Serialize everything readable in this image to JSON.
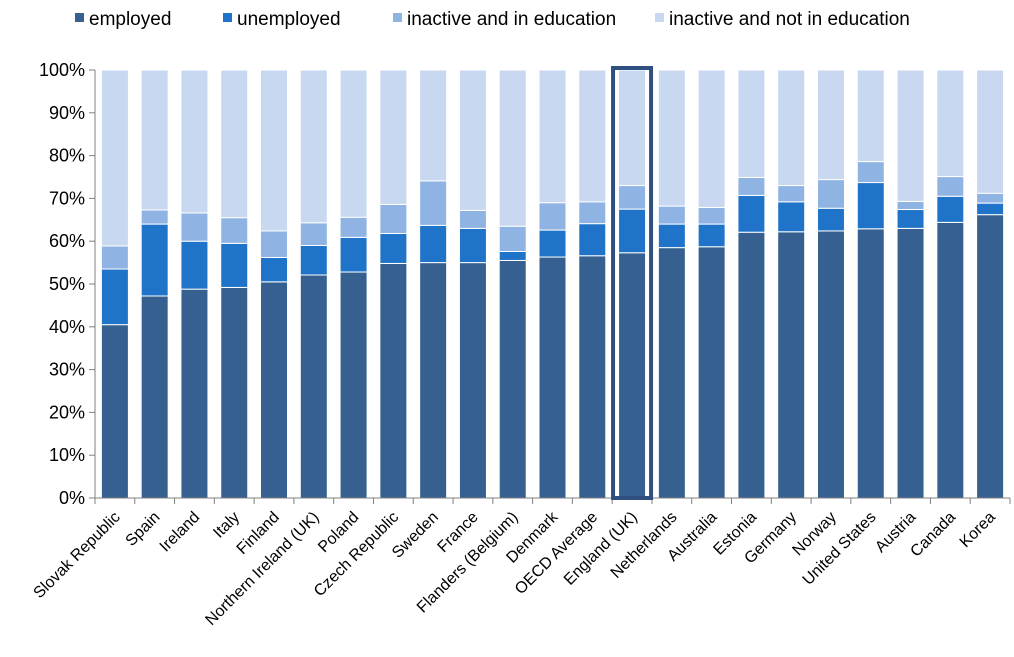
{
  "chart_data": {
    "type": "bar",
    "stacked": true,
    "legend_position": "top",
    "grid": false,
    "ylim": [
      0,
      100
    ],
    "y_ticks": [
      "0%",
      "10%",
      "20%",
      "30%",
      "40%",
      "50%",
      "60%",
      "70%",
      "80%",
      "90%",
      "100%"
    ],
    "categories": [
      "Slovak Republic",
      "Spain",
      "Ireland",
      "Italy",
      "Finland",
      "Northern Ireland (UK)",
      "Poland",
      "Czech Republic",
      "Sweden",
      "France",
      "Flanders (Belgium)",
      "Denmark",
      "OECD Average",
      "England (UK)",
      "Netherlands",
      "Australia",
      "Estonia",
      "Germany",
      "Norway",
      "United States",
      "Austria",
      "Canada",
      "Korea"
    ],
    "highlighted_category": "England (UK)",
    "series": [
      {
        "name": "employed",
        "color": "#35608F",
        "values": [
          40.5,
          47.2,
          48.8,
          49.2,
          50.5,
          52.1,
          52.8,
          54.8,
          55.0,
          55.0,
          55.5,
          56.3,
          56.6,
          57.3,
          58.5,
          58.7,
          62.1,
          62.2,
          62.4,
          62.9,
          63.0,
          64.4,
          66.2
        ]
      },
      {
        "name": "unemployed",
        "color": "#1F73C9",
        "values": [
          13.0,
          16.8,
          11.2,
          10.3,
          5.7,
          6.9,
          8.1,
          7.0,
          8.7,
          8.0,
          2.1,
          6.3,
          7.5,
          10.2,
          5.5,
          5.3,
          8.6,
          7.0,
          5.3,
          10.8,
          4.4,
          6.1,
          2.7
        ]
      },
      {
        "name": "inactive and in education",
        "color": "#8FB3E3",
        "values": [
          5.4,
          3.3,
          6.6,
          6.0,
          6.2,
          5.3,
          4.7,
          6.8,
          10.4,
          4.2,
          5.9,
          6.4,
          5.1,
          5.5,
          4.2,
          3.9,
          4.2,
          3.8,
          6.7,
          4.9,
          1.9,
          4.6,
          2.3
        ]
      },
      {
        "name": "inactive and not in education",
        "color": "#C7D8F0",
        "values": [
          41.1,
          32.7,
          33.4,
          34.5,
          37.6,
          35.7,
          34.4,
          31.4,
          25.9,
          32.8,
          36.5,
          31.0,
          30.8,
          27.0,
          31.8,
          32.1,
          25.1,
          27.0,
          25.6,
          21.4,
          30.7,
          24.9,
          28.8
        ]
      }
    ]
  }
}
